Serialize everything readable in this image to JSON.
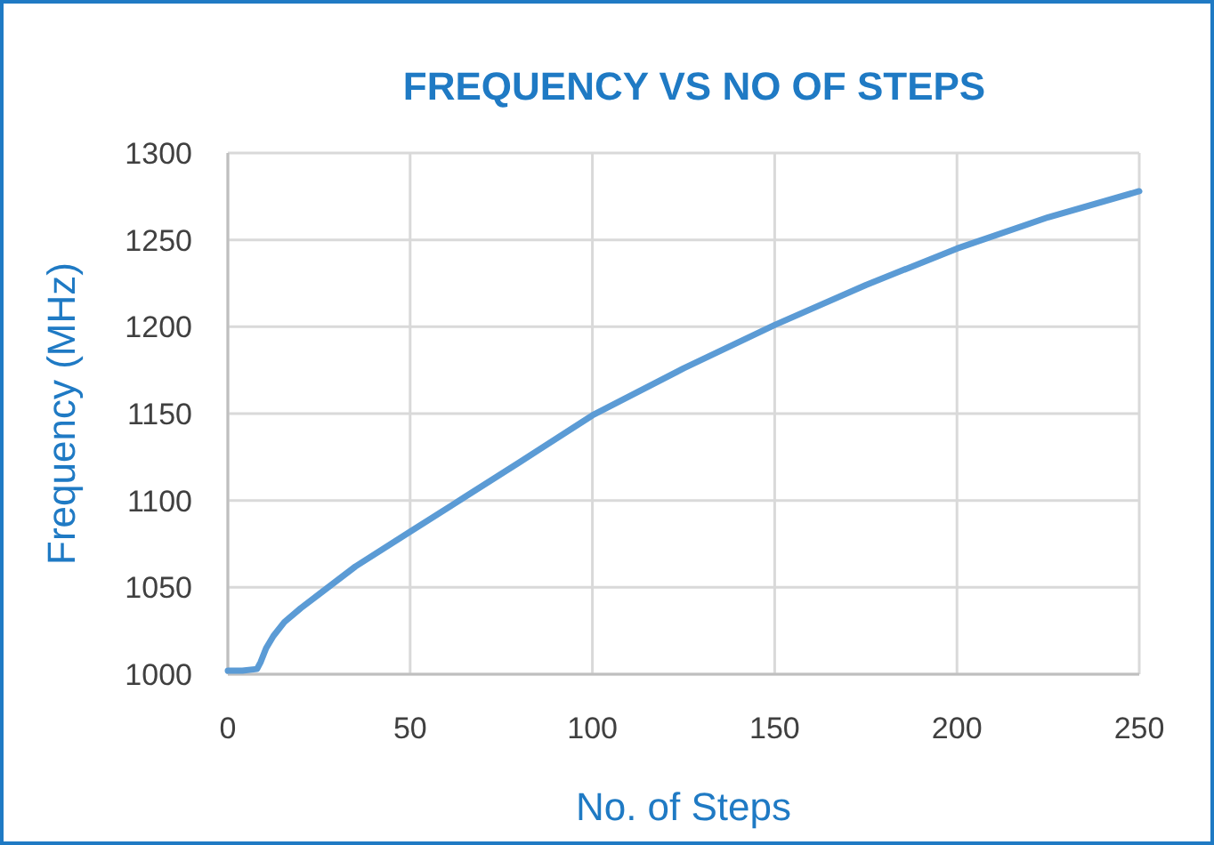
{
  "chart_data": {
    "type": "line",
    "title": "FREQUENCY VS NO OF STEPS",
    "xlabel": "No. of Steps",
    "ylabel": "Frequency (MHz)",
    "x": [
      0,
      4,
      8,
      9,
      10.5,
      12.5,
      15.5,
      20,
      25,
      35,
      50,
      65,
      80,
      100,
      125,
      150,
      175,
      200,
      225,
      250
    ],
    "series": [
      {
        "color": "#5b9bd5",
        "values": [
          1002,
          1002,
          1003,
          1007,
          1015,
          1022,
          1030,
          1038,
          1046,
          1062,
          1082,
          1102,
          1122,
          1149,
          1176,
          1201,
          1224,
          1245,
          1263,
          1278
        ]
      }
    ],
    "xlim": [
      0,
      250
    ],
    "xticks": [
      0,
      50,
      100,
      150,
      200,
      250
    ],
    "ylim": [
      1000,
      1300
    ],
    "yticks": [
      1000,
      1050,
      1100,
      1150,
      1200,
      1250,
      1300
    ],
    "grid": true,
    "marker": "none",
    "line_style": "solid"
  }
}
